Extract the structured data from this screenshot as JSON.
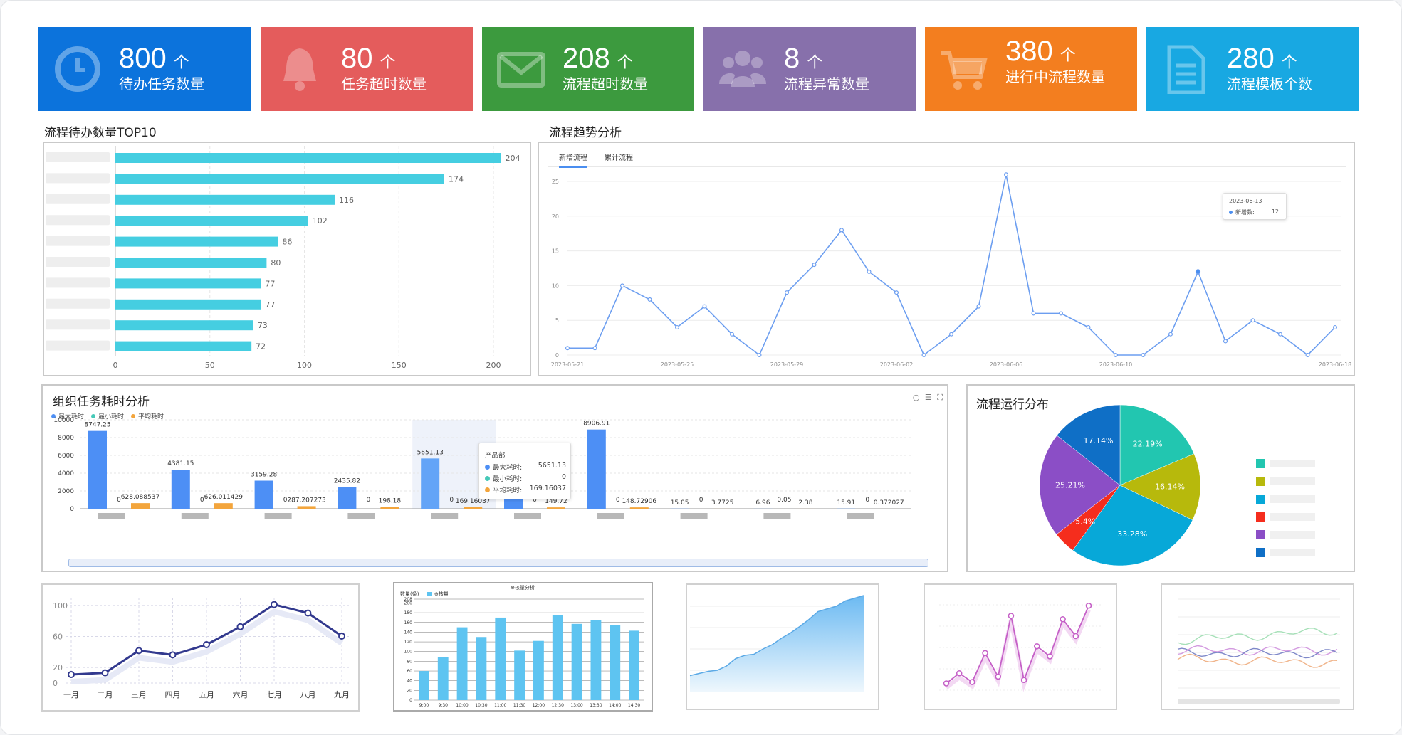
{
  "kpis": [
    {
      "value": "800",
      "unit": "个",
      "label": "待办任务数量",
      "color": "#0c73dc",
      "icon": "clock-icon"
    },
    {
      "value": "80",
      "unit": "个",
      "label": "任务超时数量",
      "color": "#e45c5c",
      "icon": "bell-icon"
    },
    {
      "value": "208",
      "unit": "个",
      "label": "流程超时数量",
      "color": "#3c9a3e",
      "icon": "mail-icon"
    },
    {
      "value": "8",
      "unit": "个",
      "label": "流程异常数量",
      "color": "#8770ab",
      "icon": "users-icon"
    },
    {
      "value": "380",
      "unit": "个",
      "label": "进行中流程数量",
      "color": "#f37e1f",
      "icon": "cart-icon"
    },
    {
      "value": "280",
      "unit": "个",
      "label": "流程模板个数",
      "color": "#18a8e2",
      "icon": "document-icon"
    }
  ],
  "top10": {
    "title": "流程待办数量TOP10",
    "chart_data": {
      "type": "bar",
      "orientation": "horizontal",
      "values": [
        204,
        174,
        116,
        102,
        86,
        80,
        77,
        77,
        73,
        72
      ],
      "xlim": [
        0,
        200
      ],
      "xticks": [
        0,
        50,
        100,
        150,
        200
      ],
      "color": "#45cee1"
    }
  },
  "trend": {
    "title": "流程趋势分析",
    "tabs": [
      "新增流程",
      "累计流程"
    ],
    "tooltip": {
      "date": "2023-06-13",
      "label": "新增数:",
      "value": "12"
    },
    "chart_data": {
      "type": "line",
      "ylim": [
        0,
        25
      ],
      "yticks": [
        0,
        5,
        10,
        15,
        20,
        25
      ],
      "xtick_labels": [
        "2023-05-21",
        "2023-05-25",
        "2023-05-29",
        "2023-06-02",
        "2023-06-06",
        "2023-06-10",
        "2023-06-18"
      ],
      "values": [
        1,
        1,
        10,
        8,
        4,
        7,
        3,
        0,
        9,
        13,
        18,
        12,
        9,
        0,
        3,
        7,
        26,
        6,
        6,
        4,
        0,
        0,
        3,
        12,
        2,
        5,
        3,
        0,
        4
      ]
    }
  },
  "org": {
    "title": "组织任务耗时分析",
    "legend": [
      {
        "name": "最大耗时",
        "color": "#4d8ff5"
      },
      {
        "name": "最小耗时",
        "color": "#46c9b8"
      },
      {
        "name": "平均耗时",
        "color": "#f3a53c"
      }
    ],
    "tooltip": {
      "name": "产品部",
      "rows": [
        {
          "label": "最大耗时:",
          "value": "5651.13"
        },
        {
          "label": "最小耗时:",
          "value": "0"
        },
        {
          "label": "平均耗时:",
          "value": "169.16037"
        }
      ]
    },
    "chart_data": {
      "type": "bar",
      "ylim": [
        0,
        10000
      ],
      "yticks": [
        0,
        2000,
        4000,
        6000,
        8000,
        10000
      ],
      "series": [
        {
          "name": "最大耗时",
          "values": [
            8747.25,
            4381.15,
            3159.28,
            2435.82,
            5651.13,
            1123.7,
            8906.91,
            15.05,
            6.96,
            15.91
          ]
        },
        {
          "name": "最小耗时",
          "values": [
            0,
            0,
            0,
            0,
            0,
            0,
            0,
            0,
            0.05,
            0
          ]
        },
        {
          "name": "平均耗时",
          "values": [
            628.088537,
            626.011429,
            287.207273,
            198.18,
            169.16037,
            149.72,
            148.72906,
            3.7725,
            2.38,
            0.372027
          ]
        }
      ],
      "labels": {
        "max": [
          "8747.25",
          "4381.15",
          "3159.28",
          "2435.82",
          "5651.13",
          "1123.7",
          "8906.91",
          "15.05",
          "6.96",
          "15.91"
        ],
        "min": [
          "0",
          "0",
          "0",
          "0",
          "0",
          "0",
          "0",
          "0",
          "0.05",
          "0"
        ],
        "avg": [
          "628.088537",
          "626.011429",
          "287.207273",
          "198.18",
          "169.16037",
          "149.72",
          "148.72906",
          "3.7725",
          "2.38",
          "0.372027"
        ]
      }
    }
  },
  "pie": {
    "title": "流程运行分布",
    "chart_data": {
      "type": "pie",
      "values": [
        22.19,
        16.14,
        33.28,
        5.4,
        25.21,
        17.14
      ],
      "labels": [
        "22.19%",
        "16.14%",
        "33.28%",
        "5.4%",
        "25.21%",
        "17.14%"
      ],
      "colors": [
        "#22c6b0",
        "#b7b90c",
        "#07a8d8",
        "#f52d1d",
        "#8b4ec6",
        "#0f6fc6"
      ]
    }
  },
  "thumb1": {
    "chart_data": {
      "type": "line",
      "categories": [
        "一月",
        "二月",
        "三月",
        "四月",
        "五月",
        "六月",
        "七月",
        "八月",
        "九月"
      ],
      "values": [
        10,
        12,
        38,
        33,
        45,
        66,
        92,
        82,
        55
      ],
      "yticks": [
        "0",
        "20",
        "60",
        "100"
      ]
    }
  },
  "thumb2": {
    "title": "⊕核量分析",
    "ylabel": "数量(条)",
    "legend": "⊕核量",
    "chart_data": {
      "type": "bar",
      "categories": [
        "9:00",
        "9:30",
        "10:00",
        "10:30",
        "11:00",
        "11:30",
        "12:00",
        "12:30",
        "13:00",
        "13:30",
        "14:00",
        "14:30"
      ],
      "values": [
        60,
        88,
        150,
        130,
        170,
        102,
        122,
        175,
        157,
        165,
        155,
        143
      ],
      "yticks": [
        "0",
        "20",
        "40",
        "60",
        "80",
        "100",
        "120",
        "140",
        "160",
        "180",
        "200",
        "208"
      ]
    }
  },
  "thumb3": {
    "chart_data": {
      "type": "area",
      "values": [
        30,
        34,
        38,
        40,
        48,
        62,
        68,
        70,
        80,
        88,
        100,
        110,
        122,
        135,
        150,
        155,
        160,
        170,
        175,
        180
      ]
    }
  },
  "thumb4": {
    "chart_data": {
      "type": "line",
      "values": [
        10,
        25,
        12,
        55,
        20,
        110,
        15,
        65,
        50,
        105,
        80,
        125
      ]
    }
  },
  "thumb5": {
    "chart_data": {
      "type": "line",
      "series_count": 4
    }
  }
}
